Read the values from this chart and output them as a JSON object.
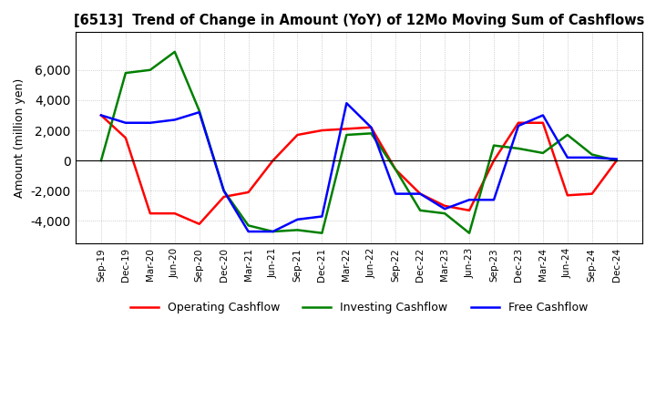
{
  "title": "[6513]  Trend of Change in Amount (YoY) of 12Mo Moving Sum of Cashflows",
  "ylabel": "Amount (million yen)",
  "x_labels": [
    "Sep-19",
    "Dec-19",
    "Mar-20",
    "Jun-20",
    "Sep-20",
    "Dec-20",
    "Mar-21",
    "Jun-21",
    "Sep-21",
    "Dec-21",
    "Mar-22",
    "Jun-22",
    "Sep-22",
    "Dec-22",
    "Mar-23",
    "Jun-23",
    "Sep-23",
    "Dec-23",
    "Mar-24",
    "Jun-24",
    "Sep-24",
    "Dec-24"
  ],
  "operating": [
    3000,
    1500,
    -3500,
    -3500,
    -4200,
    -2400,
    -2100,
    0,
    1700,
    2000,
    2100,
    2200,
    -600,
    -2200,
    -3000,
    -3300,
    0,
    2500,
    2500,
    -2300,
    -2200,
    0
  ],
  "investing": [
    0,
    5800,
    6000,
    7200,
    3300,
    -2000,
    -4300,
    -4700,
    -4600,
    -4800,
    1700,
    1800,
    -600,
    -3300,
    -3500,
    -4800,
    1000,
    800,
    500,
    1700,
    400,
    0
  ],
  "free": [
    3000,
    2500,
    2500,
    2700,
    3200,
    -2000,
    -4700,
    -4700,
    -3900,
    -3700,
    3800,
    2200,
    -2200,
    -2200,
    -3200,
    -2600,
    -2600,
    2300,
    3000,
    200,
    200,
    100
  ],
  "ylim": [
    -5500,
    8500
  ],
  "yticks": [
    -4000,
    -2000,
    0,
    2000,
    4000,
    6000
  ],
  "operating_color": "#ff0000",
  "investing_color": "#008000",
  "free_color": "#0000ff",
  "bg_color": "#ffffff",
  "grid_color": "#b0b0b0"
}
